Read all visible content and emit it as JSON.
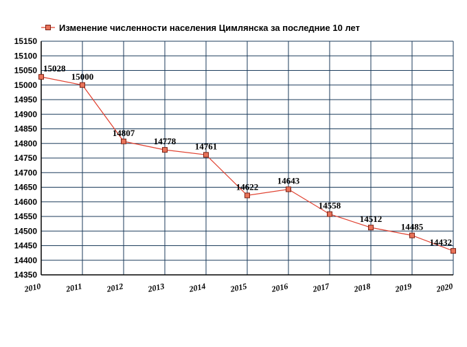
{
  "chart_data": {
    "type": "line",
    "title": "Изменение численности населения Цимлянска за последние 10 лет",
    "legend_position": "top-left",
    "grid": true,
    "x": [
      "2010",
      "2011",
      "2012",
      "2013",
      "2014",
      "2015",
      "2016",
      "2017",
      "2018",
      "2019",
      "2020"
    ],
    "ylim": [
      14350,
      15150
    ],
    "yticks": [
      14350,
      14400,
      14450,
      14500,
      14550,
      14600,
      14650,
      14700,
      14750,
      14800,
      14850,
      14900,
      14950,
      15000,
      15050,
      15100,
      15150
    ],
    "series": [
      {
        "name": "Изменение численности населения Цимлянска за последние 10 лет",
        "values": [
          15028,
          15000,
          14807,
          14778,
          14761,
          14622,
          14643,
          14558,
          14512,
          14485,
          14432
        ]
      }
    ],
    "colors": {
      "line": "#e0402f",
      "marker_fill": "#e8735a",
      "marker_stroke": "#7a1f12",
      "grid": "#1a3a5a",
      "axis": "#000000"
    }
  }
}
